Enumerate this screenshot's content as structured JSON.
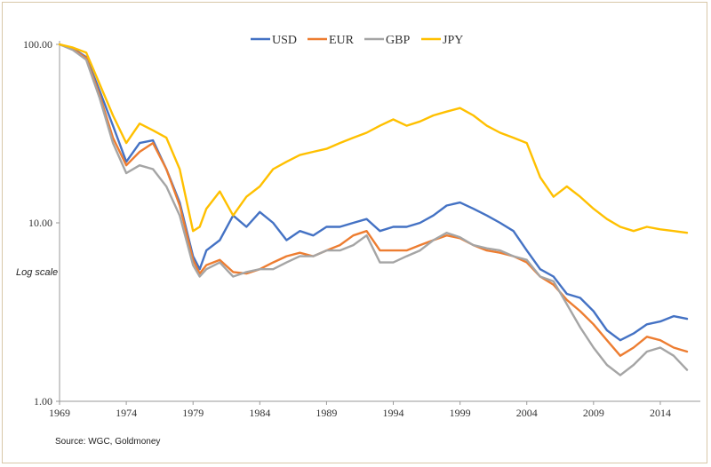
{
  "chart_data": {
    "type": "line",
    "y_scale": "log",
    "ylim": [
      1,
      100
    ],
    "y_ticks": [
      "1.00",
      "10.00",
      "100.00"
    ],
    "y_tick_values": [
      1,
      10,
      100
    ],
    "x_ticks": [
      "1969",
      "1974",
      "1979",
      "1984",
      "1989",
      "1994",
      "1999",
      "2004",
      "2009",
      "2014"
    ],
    "x_tick_values": [
      1969,
      1974,
      1979,
      1984,
      1989,
      1994,
      1999,
      2004,
      2009,
      2014
    ],
    "xlim": [
      1969,
      2017
    ],
    "grid": false,
    "legend_position": "top-center",
    "annotation": "Log scale",
    "source": "Source: WGC, Goldmoney",
    "series": [
      {
        "name": "USD",
        "color": "#4472c4",
        "x": [
          1969,
          1970,
          1971,
          1972,
          1973,
          1974,
          1975,
          1976,
          1977,
          1978,
          1979,
          1979.5,
          1980,
          1981,
          1982,
          1983,
          1984,
          1985,
          1986,
          1987,
          1988,
          1989,
          1990,
          1991,
          1992,
          1993,
          1994,
          1995,
          1996,
          1997,
          1998,
          1999,
          2000,
          2001,
          2002,
          2003,
          2004,
          2005,
          2006,
          2007,
          2008,
          2009,
          2010,
          2011,
          2012,
          2013,
          2014,
          2015,
          2016
        ],
        "y": [
          100,
          95,
          85,
          55,
          35,
          22,
          28,
          29,
          20,
          13,
          6.5,
          5.5,
          7,
          8,
          11,
          9.5,
          11.5,
          10,
          8,
          9,
          8.5,
          9.5,
          9.5,
          10,
          10.5,
          9,
          9.5,
          9.5,
          10,
          11,
          12.5,
          13,
          12,
          11,
          10,
          9,
          7,
          5.5,
          5,
          4,
          3.8,
          3.2,
          2.5,
          2.2,
          2.4,
          2.7,
          2.8,
          3,
          2.9
        ]
      },
      {
        "name": "EUR",
        "color": "#ed7d31",
        "x": [
          1969,
          1970,
          1971,
          1972,
          1973,
          1974,
          1975,
          1976,
          1977,
          1978,
          1979,
          1979.5,
          1980,
          1981,
          1982,
          1983,
          1984,
          1985,
          1986,
          1987,
          1988,
          1989,
          1990,
          1991,
          1992,
          1993,
          1994,
          1995,
          1996,
          1997,
          1998,
          1999,
          2000,
          2001,
          2002,
          2003,
          2004,
          2005,
          2006,
          2007,
          2008,
          2009,
          2010,
          2011,
          2012,
          2013,
          2014,
          2015,
          2016
        ],
        "y": [
          100,
          94,
          84,
          52,
          30,
          21,
          25,
          28,
          20,
          12.5,
          6.2,
          5.2,
          5.8,
          6.2,
          5.3,
          5.2,
          5.5,
          6,
          6.5,
          6.8,
          6.5,
          7,
          7.5,
          8.5,
          9,
          7,
          7,
          7,
          7.5,
          8,
          8.5,
          8.2,
          7.5,
          7,
          6.8,
          6.5,
          6,
          5,
          4.5,
          3.7,
          3.2,
          2.7,
          2.2,
          1.8,
          2,
          2.3,
          2.2,
          2,
          1.9
        ]
      },
      {
        "name": "GBP",
        "color": "#a5a5a5",
        "x": [
          1969,
          1970,
          1971,
          1972,
          1973,
          1974,
          1975,
          1976,
          1977,
          1978,
          1979,
          1979.5,
          1980,
          1981,
          1982,
          1983,
          1984,
          1985,
          1986,
          1987,
          1988,
          1989,
          1990,
          1991,
          1992,
          1993,
          1994,
          1995,
          1996,
          1997,
          1998,
          1999,
          2000,
          2001,
          2002,
          2003,
          2004,
          2005,
          2006,
          2007,
          2008,
          2009,
          2010,
          2011,
          2012,
          2013,
          2014,
          2015,
          2016
        ],
        "y": [
          100,
          93,
          82,
          50,
          28,
          19,
          21,
          20,
          16,
          11,
          5.8,
          5,
          5.5,
          6,
          5,
          5.3,
          5.5,
          5.5,
          6,
          6.5,
          6.5,
          7,
          7,
          7.5,
          8.5,
          6,
          6,
          6.5,
          7,
          8,
          8.8,
          8.3,
          7.5,
          7.2,
          7,
          6.5,
          6.2,
          5,
          4.7,
          3.5,
          2.6,
          2,
          1.6,
          1.4,
          1.6,
          1.9,
          2,
          1.8,
          1.5
        ]
      },
      {
        "name": "JPY",
        "color": "#ffc000",
        "x": [
          1969,
          1970,
          1971,
          1972,
          1973,
          1974,
          1975,
          1976,
          1977,
          1978,
          1979,
          1979.5,
          1980,
          1981,
          1982,
          1983,
          1984,
          1985,
          1986,
          1987,
          1988,
          1989,
          1990,
          1991,
          1992,
          1993,
          1994,
          1995,
          1996,
          1997,
          1998,
          1999,
          2000,
          2001,
          2002,
          2003,
          2004,
          2005,
          2006,
          2007,
          2008,
          2009,
          2010,
          2011,
          2012,
          2013,
          2014,
          2015,
          2016
        ],
        "y": [
          100,
          96,
          90,
          60,
          40,
          28,
          36,
          33,
          30,
          20,
          9,
          9.5,
          12,
          15,
          11,
          14,
          16,
          20,
          22,
          24,
          25,
          26,
          28,
          30,
          32,
          35,
          38,
          35,
          37,
          40,
          42,
          44,
          40,
          35,
          32,
          30,
          28,
          18,
          14,
          16,
          14,
          12,
          10.5,
          9.5,
          9,
          9.5,
          9.2,
          9,
          8.8
        ]
      }
    ]
  }
}
